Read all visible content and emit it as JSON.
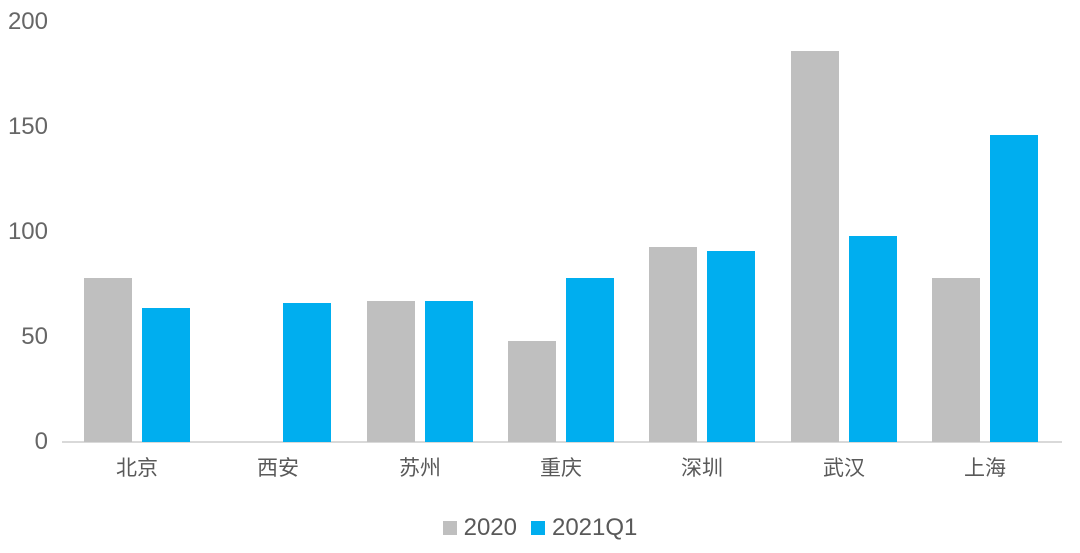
{
  "chart_data": {
    "type": "bar",
    "title": "",
    "xlabel": "",
    "ylabel": "",
    "categories": [
      "北京",
      "西安",
      "苏州",
      "重庆",
      "深圳",
      "武汉",
      "上海"
    ],
    "series": [
      {
        "name": "2020",
        "color": "#bfbfbf",
        "values": [
          78,
          0,
          67,
          48,
          93,
          186,
          78
        ]
      },
      {
        "name": "2021Q1",
        "color": "#00aeef",
        "values": [
          64,
          66,
          67,
          78,
          91,
          98,
          146
        ]
      }
    ],
    "ylim": [
      0,
      200
    ],
    "yticks": [
      0,
      50,
      100,
      150,
      200
    ],
    "grid": false,
    "legend_position": "bottom",
    "axis_line_color": "#d9d9d9",
    "tick_text_color": "#666666",
    "category_text_color": "#595959"
  }
}
